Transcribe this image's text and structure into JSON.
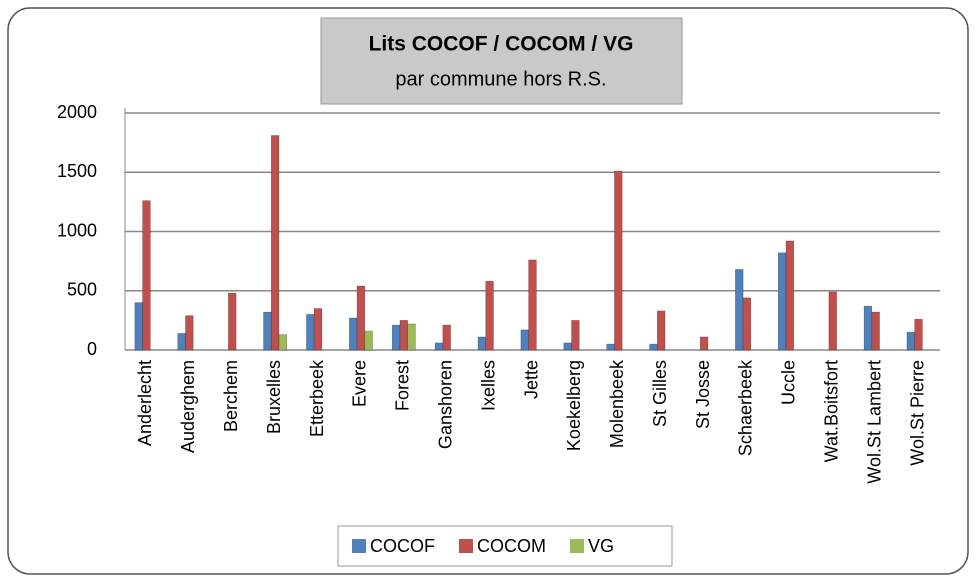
{
  "chart_data": {
    "type": "bar",
    "title": "Lits COCOF / COCOM / VG",
    "subtitle": "par commune hors R.S.",
    "categories": [
      "Anderlecht",
      "Auderghem",
      "Berchem",
      "Bruxelles",
      "Etterbeek",
      "Evere",
      "Forest",
      "Ganshoren",
      "Ixelles",
      "Jette",
      "Koekelberg",
      "Molenbeek",
      "St Gilles",
      "St Josse",
      "Schaerbeek",
      "Uccle",
      "Wat.Boitsfort",
      "Wol.St Lambert",
      "Wol.St Pierre"
    ],
    "series": [
      {
        "name": "COCOF",
        "color": "#4f81bd",
        "values": [
          400,
          140,
          0,
          320,
          300,
          270,
          210,
          60,
          110,
          170,
          60,
          50,
          50,
          0,
          680,
          820,
          0,
          370,
          150
        ]
      },
      {
        "name": "COCOM",
        "color": "#c0504d",
        "values": [
          1260,
          290,
          480,
          1810,
          350,
          540,
          250,
          210,
          580,
          760,
          250,
          1510,
          330,
          110,
          440,
          920,
          490,
          320,
          260
        ]
      },
      {
        "name": "VG",
        "color": "#9bbb59",
        "values": [
          0,
          0,
          0,
          130,
          0,
          160,
          220,
          0,
          0,
          0,
          0,
          0,
          0,
          0,
          0,
          0,
          0,
          0,
          0
        ]
      }
    ],
    "ylim": [
      0,
      2000
    ],
    "yticks": [
      0,
      500,
      1000,
      1500,
      2000
    ],
    "grid": true,
    "legend": "bottom"
  }
}
